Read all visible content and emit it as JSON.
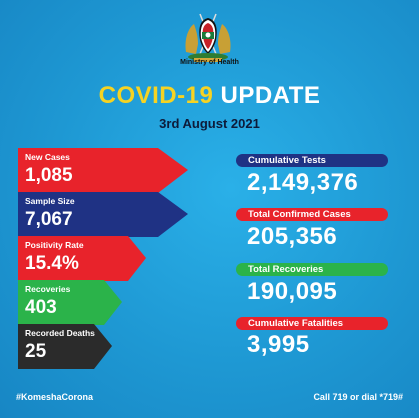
{
  "header": {
    "ministry": "Ministry of Health",
    "title_part1": "COVID-19",
    "title_part2": "UPDATE",
    "date": "3rd August 2021"
  },
  "left_stats": [
    {
      "label": "New Cases",
      "value": "1,085",
      "color": "#e8232b"
    },
    {
      "label": "Sample Size",
      "value": "7,067",
      "color": "#1f3284"
    },
    {
      "label": "Positivity Rate",
      "value": "15.4%",
      "color": "#e8232b"
    },
    {
      "label": "Recoveries",
      "value": "403",
      "color": "#2bb34a"
    },
    {
      "label": "Recorded Deaths",
      "value": "25",
      "color": "#2b2b2b"
    }
  ],
  "right_stats": [
    {
      "label": "Cumulative Tests",
      "value": "2,149,376",
      "color": "#1f3284"
    },
    {
      "label": "Total Confirmed Cases",
      "value": "205,356",
      "color": "#e8232b"
    },
    {
      "label": "Total Recoveries",
      "value": "190,095",
      "color": "#2bb34a"
    },
    {
      "label": "Cumulative Fatalities",
      "value": "3,995",
      "color": "#e8232b"
    }
  ],
  "footer": {
    "hashtag": "#KomeshaCorona",
    "contact": "Call 719 or dial *719#"
  },
  "colors": {
    "background": "#1f9bd7",
    "title_accent": "#f6d322",
    "date_text": "#0d1b3a"
  },
  "icons": {
    "emblem": "kenya-coat-of-arms"
  }
}
